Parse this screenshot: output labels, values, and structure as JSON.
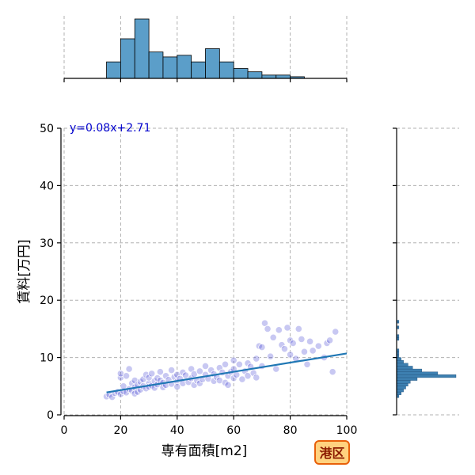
{
  "chart_data": {
    "type": "scatter",
    "title": "",
    "xlabel": "専有面積[m2]",
    "ylabel": "賃料[万円]",
    "xlim": [
      0,
      100
    ],
    "ylim": [
      0,
      50
    ],
    "xticks": [
      0,
      20,
      40,
      60,
      80,
      100
    ],
    "yticks": [
      0,
      10,
      20,
      30,
      40,
      50
    ],
    "grid": true,
    "regression": {
      "slope": 0.08,
      "intercept": 2.71,
      "label": "y=0.08x+2.71",
      "x_range": [
        15,
        100
      ]
    },
    "region_label": "港区",
    "colors": {
      "points": "#3a3ad0",
      "line": "#1f77b4",
      "hist": "#5b9ec9",
      "region_bg": "#ffd27f",
      "region_border": "#e8600a"
    },
    "points": [
      [
        15,
        3.2
      ],
      [
        16,
        3.5
      ],
      [
        17,
        3.1
      ],
      [
        18,
        3.8
      ],
      [
        19,
        4.0
      ],
      [
        20,
        3.6
      ],
      [
        20,
        6.5
      ],
      [
        20,
        7.2
      ],
      [
        21,
        4.1
      ],
      [
        21,
        5.0
      ],
      [
        22,
        3.9
      ],
      [
        22,
        6.8
      ],
      [
        23,
        4.5
      ],
      [
        23,
        8.0
      ],
      [
        24,
        4.2
      ],
      [
        24,
        5.5
      ],
      [
        25,
        4.8
      ],
      [
        25,
        3.7
      ],
      [
        25,
        6.0
      ],
      [
        26,
        5.2
      ],
      [
        26,
        4.0
      ],
      [
        27,
        5.8
      ],
      [
        27,
        4.4
      ],
      [
        28,
        6.2
      ],
      [
        28,
        5.0
      ],
      [
        29,
        4.6
      ],
      [
        29,
        7.0
      ],
      [
        30,
        5.5
      ],
      [
        30,
        4.9
      ],
      [
        30,
        6.5
      ],
      [
        31,
        5.1
      ],
      [
        31,
        7.2
      ],
      [
        32,
        5.9
      ],
      [
        32,
        4.7
      ],
      [
        33,
        6.4
      ],
      [
        33,
        5.3
      ],
      [
        34,
        6.0
      ],
      [
        34,
        7.5
      ],
      [
        35,
        5.6
      ],
      [
        35,
        4.8
      ],
      [
        36,
        6.8
      ],
      [
        36,
        5.2
      ],
      [
        37,
        6.1
      ],
      [
        38,
        5.4
      ],
      [
        38,
        7.8
      ],
      [
        39,
        6.6
      ],
      [
        40,
        5.8
      ],
      [
        40,
        7.0
      ],
      [
        40,
        4.9
      ],
      [
        41,
        6.3
      ],
      [
        42,
        5.5
      ],
      [
        42,
        7.4
      ],
      [
        43,
        6.9
      ],
      [
        44,
        5.7
      ],
      [
        45,
        6.4
      ],
      [
        45,
        8.0
      ],
      [
        46,
        5.2
      ],
      [
        46,
        7.1
      ],
      [
        47,
        6.0
      ],
      [
        48,
        7.6
      ],
      [
        48,
        5.5
      ],
      [
        49,
        6.2
      ],
      [
        50,
        7.0
      ],
      [
        50,
        8.5
      ],
      [
        51,
        6.3
      ],
      [
        52,
        7.8
      ],
      [
        53,
        5.9
      ],
      [
        53,
        7.1
      ],
      [
        54,
        6.6
      ],
      [
        55,
        8.2
      ],
      [
        55,
        6.0
      ],
      [
        56,
        7.4
      ],
      [
        57,
        5.6
      ],
      [
        57,
        8.8
      ],
      [
        58,
        6.8
      ],
      [
        58,
        5.2
      ],
      [
        59,
        7.5
      ],
      [
        60,
        6.4
      ],
      [
        60,
        9.5
      ],
      [
        60,
        8.0
      ],
      [
        61,
        7.0
      ],
      [
        62,
        8.8
      ],
      [
        63,
        6.2
      ],
      [
        64,
        7.6
      ],
      [
        65,
        9.0
      ],
      [
        65,
        6.8
      ],
      [
        66,
        8.4
      ],
      [
        67,
        7.3
      ],
      [
        68,
        9.8
      ],
      [
        68,
        6.5
      ],
      [
        69,
        12.0
      ],
      [
        70,
        11.8
      ],
      [
        70,
        8.5
      ],
      [
        71,
        16.0
      ],
      [
        72,
        15.0
      ],
      [
        73,
        10.2
      ],
      [
        74,
        13.5
      ],
      [
        75,
        8.0
      ],
      [
        76,
        14.8
      ],
      [
        77,
        12.2
      ],
      [
        78,
        11.5
      ],
      [
        79,
        15.2
      ],
      [
        80,
        13.0
      ],
      [
        80,
        10.5
      ],
      [
        81,
        12.5
      ],
      [
        82,
        9.8
      ],
      [
        83,
        15.0
      ],
      [
        84,
        13.2
      ],
      [
        85,
        11.0
      ],
      [
        86,
        8.8
      ],
      [
        87,
        12.8
      ],
      [
        88,
        11.2
      ],
      [
        90,
        12.0
      ],
      [
        92,
        10.0
      ],
      [
        93,
        12.5
      ],
      [
        94,
        13.0
      ],
      [
        95,
        7.5
      ],
      [
        96,
        14.5
      ]
    ],
    "hist_x": {
      "bins": [
        15,
        20,
        25,
        30,
        35,
        40,
        45,
        50,
        55,
        60,
        65,
        70,
        75,
        80,
        85,
        90,
        95,
        100
      ],
      "counts": [
        10,
        24,
        36,
        16,
        13,
        14,
        10,
        18,
        10,
        6,
        4,
        2,
        2,
        1,
        0,
        0,
        0
      ]
    },
    "hist_y": {
      "bin_width": 0.5,
      "start": 3.0,
      "counts": [
        1,
        2,
        3,
        4,
        5,
        6,
        9,
        26,
        18,
        11,
        7,
        5,
        3,
        2,
        1,
        1,
        1,
        0,
        0,
        0,
        1,
        1,
        0,
        0,
        1,
        0,
        1,
        0
      ]
    }
  }
}
